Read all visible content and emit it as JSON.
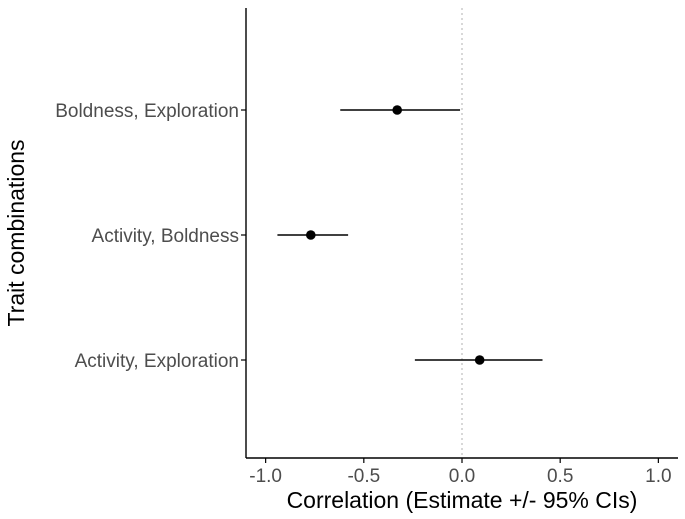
{
  "chart_data": {
    "type": "forest",
    "xlabel": "Correlation (Estimate +/- 95% CIs)",
    "ylabel": "Trait combinations",
    "xlim": [
      -1.1,
      1.1
    ],
    "x_ticks": [
      -1.0,
      -0.5,
      0.0,
      0.5,
      1.0
    ],
    "x_tick_labels": [
      "-1.0",
      "-0.5",
      "0.0",
      "0.5",
      "1.0"
    ],
    "reference_line": 0.0,
    "grid": false,
    "categories": [
      "Boldness, Exploration",
      "Activity, Boldness",
      "Activity, Exploration"
    ],
    "estimates": [
      -0.33,
      -0.77,
      0.09
    ],
    "ci_lower": [
      -0.62,
      -0.94,
      -0.24
    ],
    "ci_upper": [
      -0.01,
      -0.58,
      0.41
    ]
  },
  "colors": {
    "point": "#000000",
    "interval": "#000000",
    "reference_line": "#bdbdbd",
    "axis": "#000000",
    "tick_label": "#4d4d4d"
  }
}
